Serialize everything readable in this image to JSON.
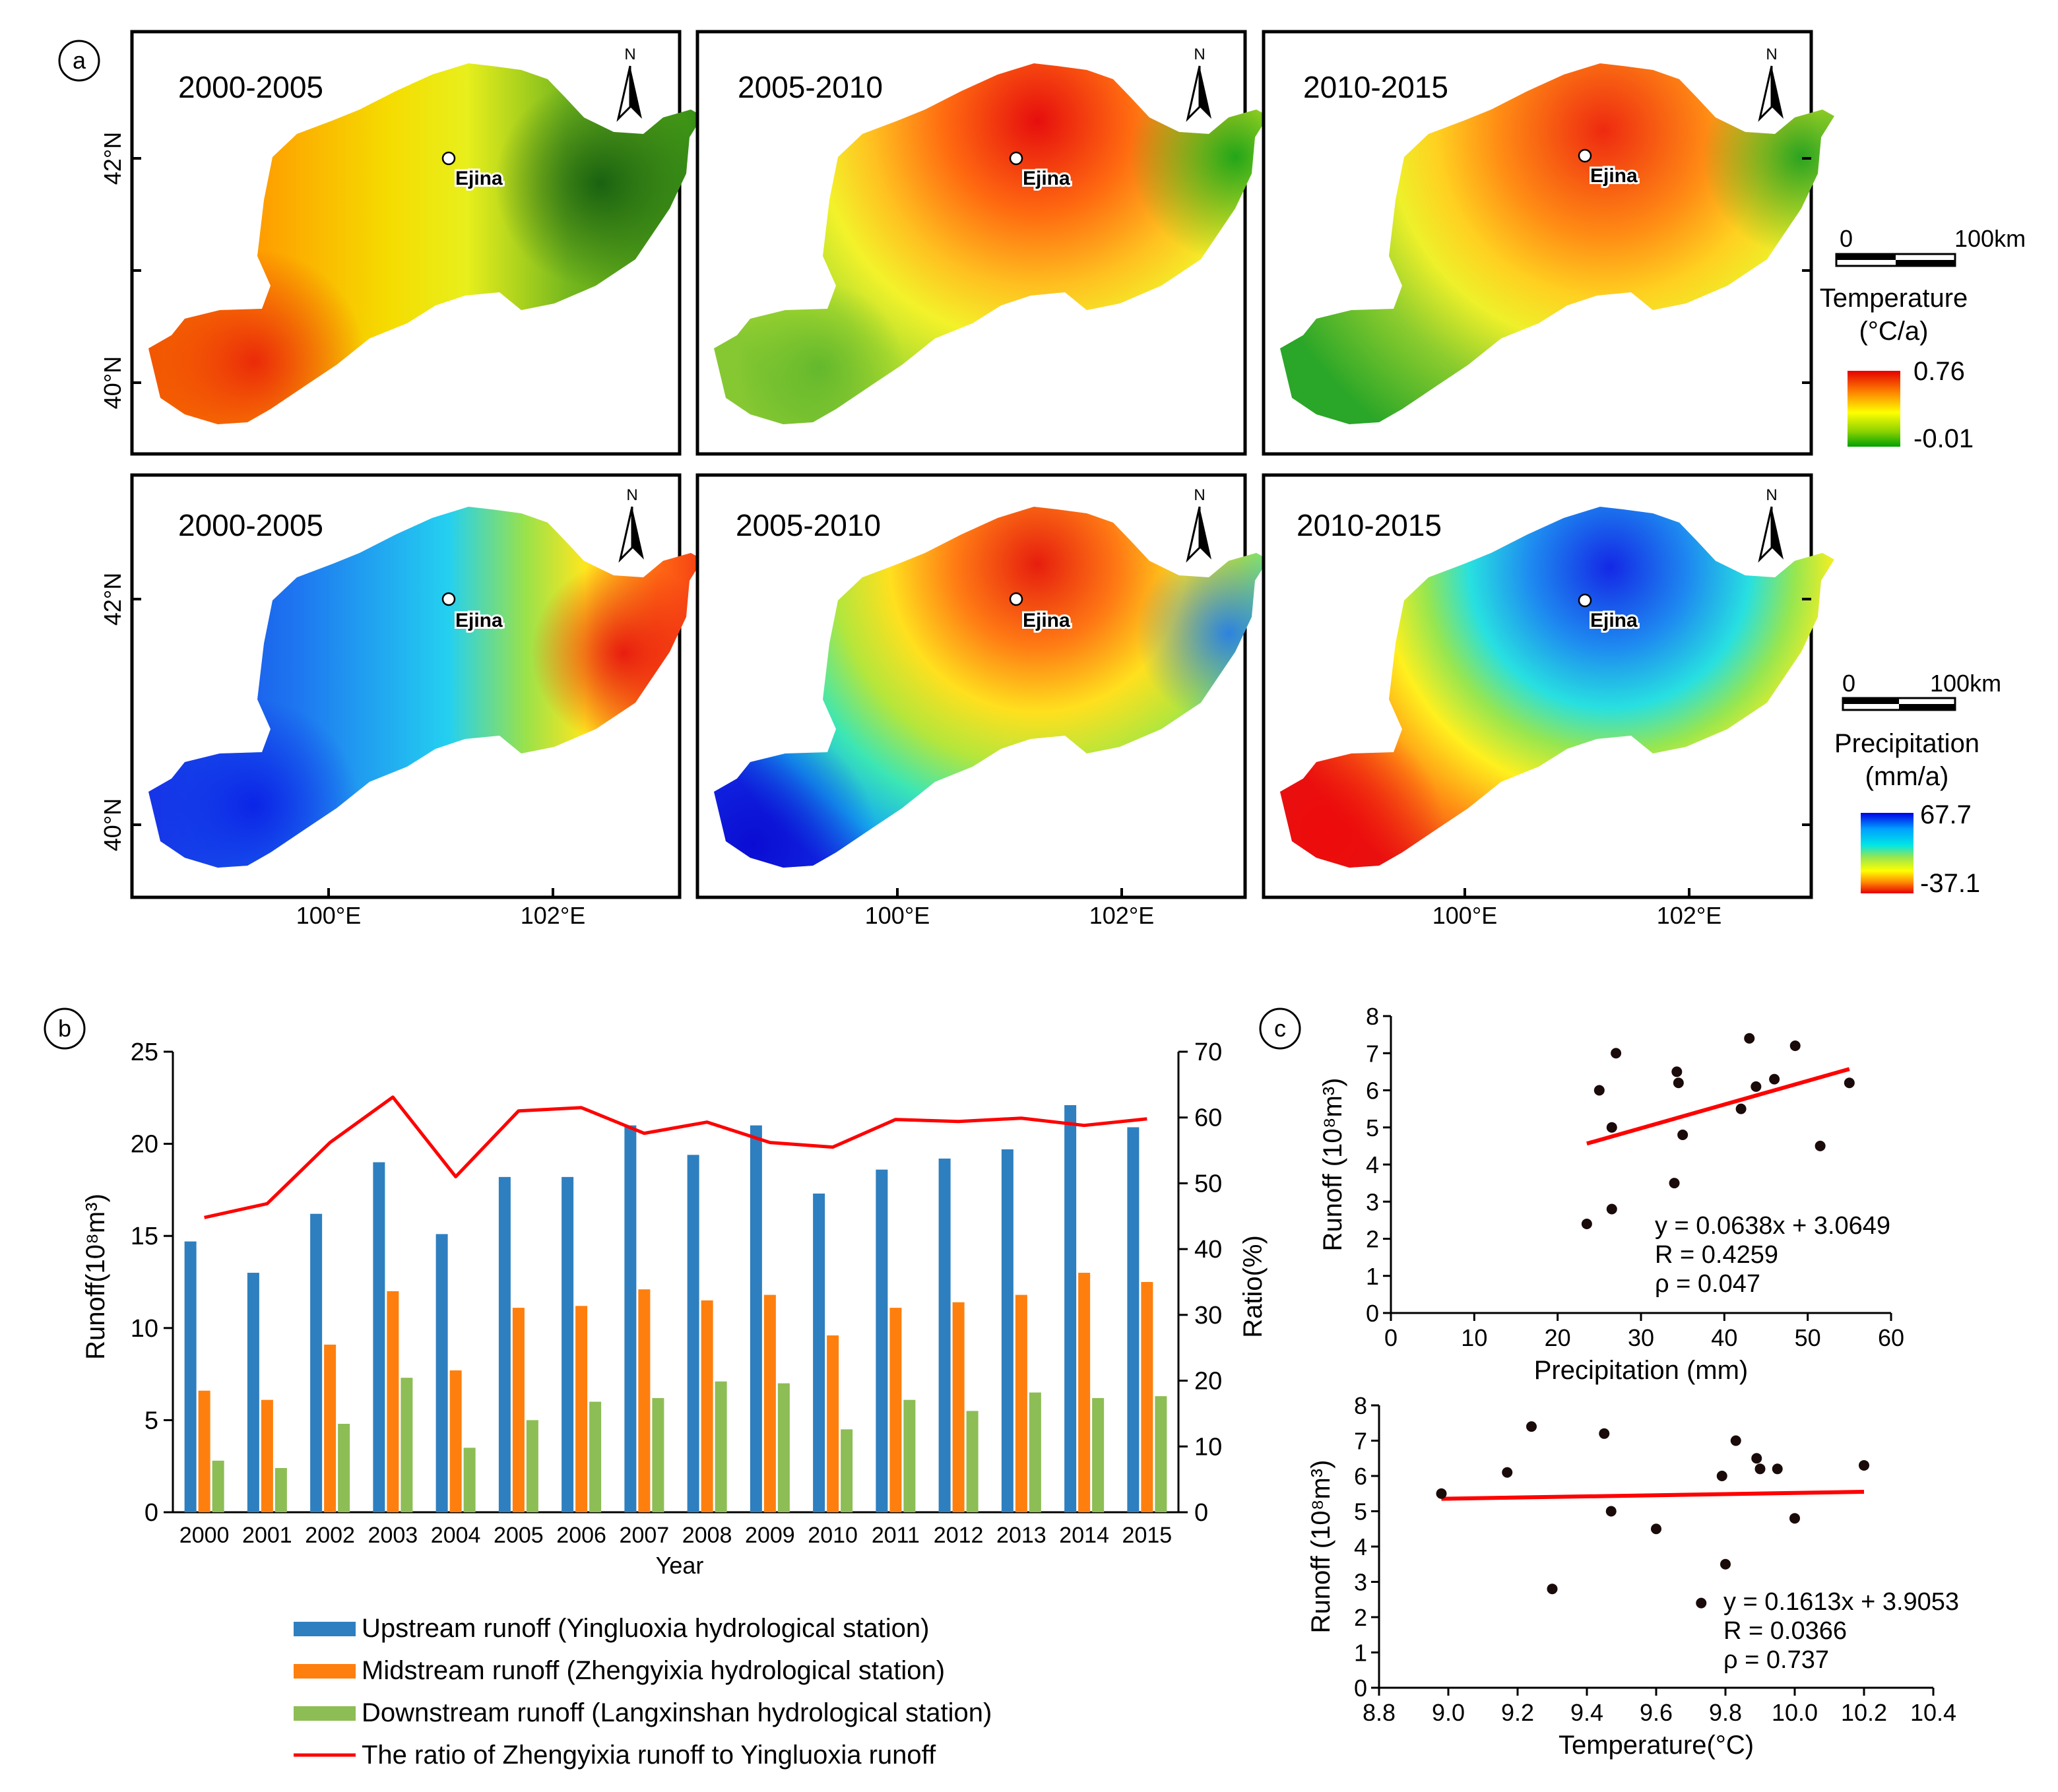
{
  "panel_labels": {
    "a": "a",
    "b": "b",
    "c": "c"
  },
  "north_label": "N",
  "station_label": "Ejina",
  "map_axes": {
    "lat_ticks": [
      "42°N",
      "40°N"
    ],
    "lon_ticks": [
      "100°E",
      "102°E"
    ]
  },
  "maps": {
    "temperature": [
      {
        "period": "2000-2005"
      },
      {
        "period": "2005-2010"
      },
      {
        "period": "2010-2015"
      }
    ],
    "precipitation": [
      {
        "period": "2000-2005"
      },
      {
        "period": "2005-2010"
      },
      {
        "period": "2010-2015"
      }
    ]
  },
  "scalebar": {
    "start": "0",
    "end": "100km"
  },
  "legend_temperature": {
    "title_line1": "Temperature",
    "title_line2": "(°C/a)",
    "max": "0.76",
    "min": "-0.01",
    "colors": [
      "#e60000",
      "#ff8c00",
      "#ffff00",
      "#8cd200",
      "#00a000"
    ]
  },
  "legend_precipitation": {
    "title_line1": "Precipitation",
    "title_line2": "(mm/a)",
    "max": "67.7",
    "min": "-37.1",
    "colors": [
      "#0000e6",
      "#00a0ff",
      "#00e6e6",
      "#96e650",
      "#ffff00",
      "#ff8c00",
      "#e60000"
    ]
  },
  "chart_data": [
    {
      "type": "bar",
      "panel": "b",
      "categories": [
        "2000",
        "2001",
        "2002",
        "2003",
        "2004",
        "2005",
        "2006",
        "2007",
        "2008",
        "2009",
        "2010",
        "2011",
        "2012",
        "2013",
        "2014",
        "2015"
      ],
      "series": [
        {
          "name": "Upstream runoff (Yingluoxia hydrological station)",
          "color": "#2e7fbf",
          "values": [
            14.7,
            13.0,
            16.2,
            19.0,
            15.1,
            18.2,
            18.2,
            21.0,
            19.4,
            21.0,
            17.3,
            18.6,
            19.2,
            19.7,
            22.1,
            20.9
          ]
        },
        {
          "name": "Midstream runoff (Zhengyixia hydrological station)",
          "color": "#ff7f0e",
          "values": [
            6.6,
            6.1,
            9.1,
            12.0,
            7.7,
            11.1,
            11.2,
            12.1,
            11.5,
            11.8,
            9.6,
            11.1,
            11.4,
            11.8,
            13.0,
            12.5
          ]
        },
        {
          "name": "Downstream runoff (Langxinshan hydrological station)",
          "color": "#8dbd55",
          "values": [
            2.8,
            2.4,
            4.8,
            7.3,
            3.5,
            5.0,
            6.0,
            6.2,
            7.1,
            7.0,
            4.5,
            6.1,
            5.5,
            6.5,
            6.2,
            6.3
          ]
        },
        {
          "name": "The ratio of Zhengyixia runoff to Yingluoxia runoff",
          "color": "#ff0000",
          "axis": "right",
          "values": [
            44.8,
            46.9,
            56.2,
            63.1,
            51.0,
            61.0,
            61.5,
            57.6,
            59.3,
            56.2,
            55.5,
            59.7,
            59.4,
            59.9,
            58.8,
            59.8
          ]
        }
      ],
      "xlabel": "Year",
      "ylabel": "Runoff(10⁸m³)",
      "y2label": "Ratio(%)",
      "ylim": [
        0,
        25
      ],
      "y2lim": [
        0,
        70
      ],
      "yticks": [
        "0",
        "5",
        "10",
        "15",
        "20",
        "25"
      ],
      "y2ticks": [
        "0",
        "10",
        "20",
        "30",
        "40",
        "50",
        "60",
        "70"
      ]
    },
    {
      "type": "scatter",
      "panel": "c-top",
      "x": [
        23.5,
        25.0,
        26.5,
        26.5,
        27.0,
        34.0,
        34.3,
        34.5,
        35.0,
        42.0,
        43.0,
        43.8,
        46.0,
        48.5,
        51.5,
        55.0
      ],
      "y": [
        2.4,
        6.0,
        5.0,
        2.8,
        7.0,
        3.5,
        6.5,
        6.2,
        4.8,
        5.5,
        7.4,
        6.1,
        6.3,
        7.2,
        4.5,
        6.2
      ],
      "fit": {
        "slope": 0.0638,
        "intercept": 3.0649,
        "x_range": [
          23.5,
          55.0
        ],
        "color": "#ff0000"
      },
      "annotations": [
        "y = 0.0638x + 3.0649",
        "R = 0.4259",
        "ρ = 0.047"
      ],
      "xlabel": "Precipitation (mm)",
      "ylabel": "Runoff (10⁸m³)",
      "xlim": [
        0,
        60
      ],
      "ylim": [
        0,
        8
      ],
      "xticks": [
        "0",
        "10",
        "20",
        "30",
        "40",
        "50",
        "60"
      ],
      "yticks": [
        "0",
        "1",
        "2",
        "3",
        "4",
        "5",
        "6",
        "7",
        "8"
      ]
    },
    {
      "type": "scatter",
      "panel": "c-bottom",
      "x": [
        8.98,
        9.17,
        9.24,
        9.3,
        9.45,
        9.47,
        9.6,
        9.73,
        9.79,
        9.8,
        9.83,
        9.89,
        9.9,
        9.95,
        10.0,
        10.2
      ],
      "y": [
        5.5,
        6.1,
        7.4,
        2.8,
        7.2,
        5.0,
        4.5,
        2.4,
        6.0,
        3.5,
        7.0,
        6.5,
        6.2,
        6.2,
        4.8,
        6.3
      ],
      "fit": {
        "slope": 0.1613,
        "intercept": 3.9053,
        "x_range": [
          8.98,
          10.2
        ],
        "color": "#ff0000"
      },
      "annotations": [
        "y = 0.1613x + 3.9053",
        "R = 0.0366",
        "ρ = 0.737"
      ],
      "xlabel": "Temperature(°C)",
      "ylabel": "Runoff (10⁸m³)",
      "xlim": [
        8.8,
        10.4
      ],
      "ylim": [
        0,
        8
      ],
      "xticks": [
        "8.8",
        "9.0",
        "9.2",
        "9.4",
        "9.6",
        "9.8",
        "10.0",
        "10.2",
        "10.4"
      ],
      "yticks": [
        "0",
        "1",
        "2",
        "3",
        "4",
        "5",
        "6",
        "7",
        "8"
      ]
    }
  ]
}
